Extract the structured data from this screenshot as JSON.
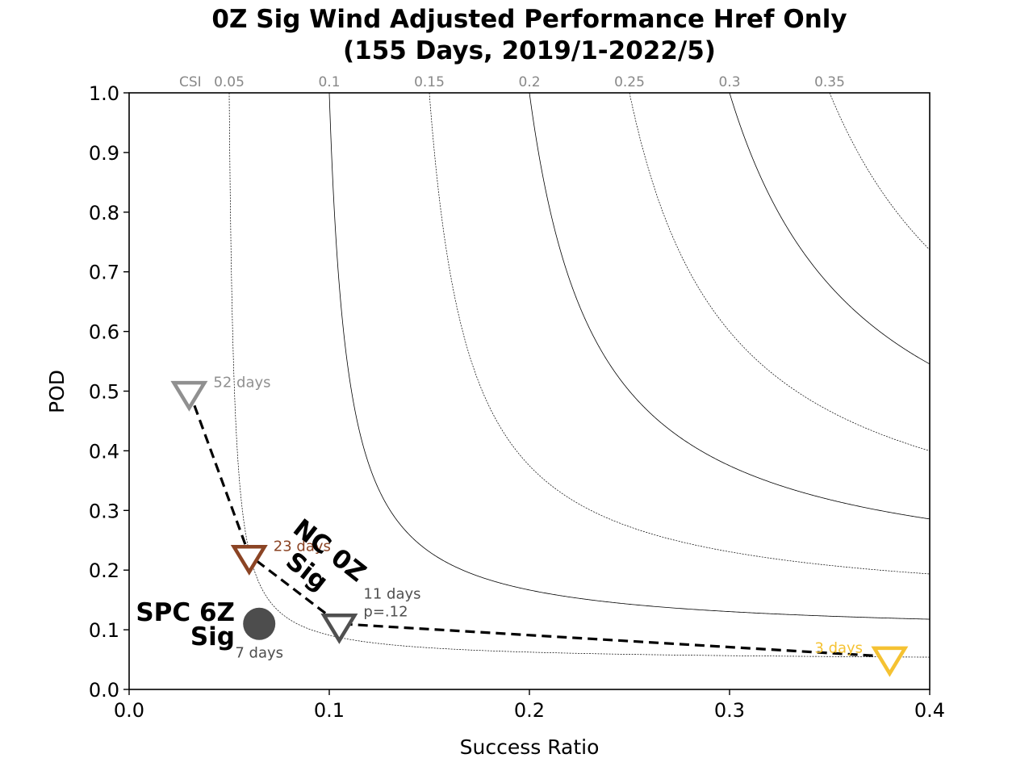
{
  "chart_data": {
    "type": "scatter",
    "title": [
      "0Z Sig Wind Adjusted Performance Href Only",
      "(155 Days, 2019/1-2022/5)"
    ],
    "xlabel": "Success Ratio",
    "ylabel": "POD",
    "xlim": [
      0.0,
      0.4
    ],
    "ylim": [
      0.0,
      1.0
    ],
    "xticks": [
      "0.0",
      "0.1",
      "0.2",
      "0.3",
      "0.4"
    ],
    "yticks": [
      "0.0",
      "0.1",
      "0.2",
      "0.3",
      "0.4",
      "0.5",
      "0.6",
      "0.7",
      "0.8",
      "0.9",
      "1.0"
    ],
    "csi_prefix": "CSI",
    "csi_contours": [
      {
        "value": 0.05,
        "label": "0.05",
        "style": "dotted"
      },
      {
        "value": 0.1,
        "label": "0.1",
        "style": "solid"
      },
      {
        "value": 0.15,
        "label": "0.15",
        "style": "dotted"
      },
      {
        "value": 0.2,
        "label": "0.2",
        "style": "solid"
      },
      {
        "value": 0.25,
        "label": "0.25",
        "style": "dotted"
      },
      {
        "value": 0.3,
        "label": "0.3",
        "style": "solid"
      },
      {
        "value": 0.35,
        "label": "0.35",
        "style": "dotted"
      }
    ],
    "series": [
      {
        "x": 0.03,
        "y": 0.5,
        "marker": "triangle-down",
        "color": "#909090",
        "label": "52 days"
      },
      {
        "x": 0.06,
        "y": 0.225,
        "marker": "triangle-down",
        "color": "#8b4424",
        "label": "23 days"
      },
      {
        "x": 0.105,
        "y": 0.11,
        "marker": "triangle-down",
        "color": "#505050",
        "label": "11 days",
        "label2": "p=.12"
      },
      {
        "x": 0.38,
        "y": 0.055,
        "marker": "triangle-down",
        "color": "#f5c232",
        "label": "3 days"
      }
    ],
    "reference": {
      "x": 0.065,
      "y": 0.11,
      "marker": "circle",
      "color": "#4d4d4d",
      "label": "7 days",
      "name_line1": "SPC 6Z",
      "name_line2": "Sig"
    },
    "series_label_line1": "NC 0Z",
    "series_label_line2": "Sig",
    "line_style": "dashed",
    "line_color": "#000000"
  }
}
